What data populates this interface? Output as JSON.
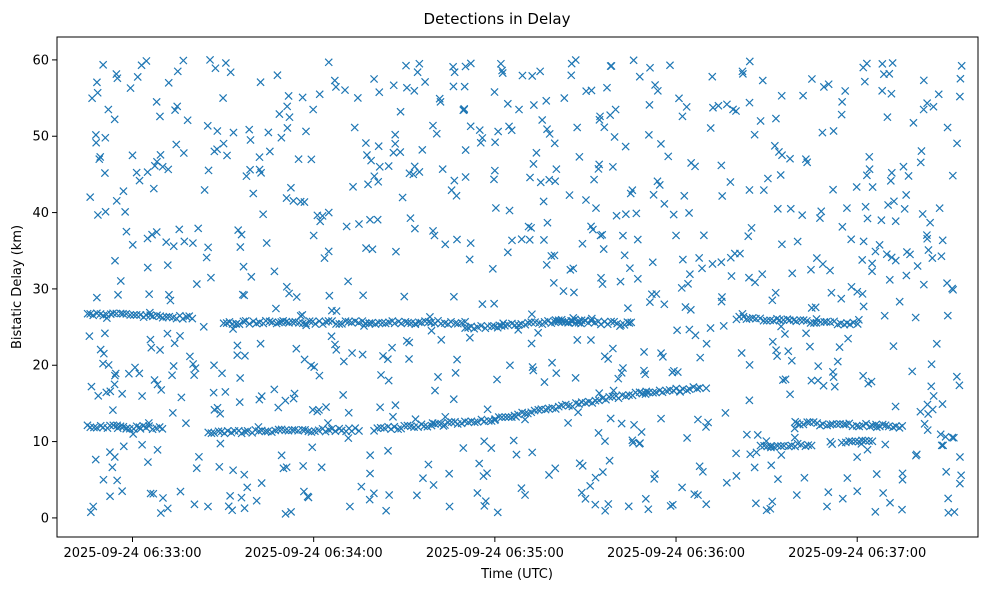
{
  "chart_data": {
    "type": "scatter",
    "title": "Detections in Delay",
    "xlabel": "Time (UTC)",
    "ylabel": "Bistatic Delay (km)",
    "marker": "x",
    "color": "#1f77b4",
    "grid": false,
    "legend": "none",
    "x_range": [
      "2025-09-24 06:32:35",
      "2025-09-24 06:37:40"
    ],
    "ylim": [
      -2.5,
      63
    ],
    "x_ticks": [
      "2025-09-24 06:33:00",
      "2025-09-24 06:34:00",
      "2025-09-24 06:35:00",
      "2025-09-24 06:36:00",
      "2025-09-24 06:37:00"
    ],
    "y_ticks": [
      0,
      10,
      20,
      30,
      40,
      50,
      60
    ],
    "tracks": [
      {
        "t_start": "2025-09-24 06:32:45",
        "t_end": "2025-09-24 06:33:20",
        "delay_start": 26.8,
        "delay_end": 26.2
      },
      {
        "t_start": "2025-09-24 06:33:30",
        "t_end": "2025-09-24 06:34:50",
        "delay_start": 25.6,
        "delay_end": 25.6
      },
      {
        "t_start": "2025-09-24 06:34:50",
        "t_end": "2025-09-24 06:35:30",
        "delay_start": 24.8,
        "delay_end": 26.0
      },
      {
        "t_start": "2025-09-24 06:35:20",
        "t_end": "2025-09-24 06:35:45",
        "delay_start": 25.8,
        "delay_end": 25.4
      },
      {
        "t_start": "2025-09-24 06:36:20",
        "t_end": "2025-09-24 06:37:00",
        "delay_start": 26.2,
        "delay_end": 25.4
      },
      {
        "t_start": "2025-09-24 06:32:45",
        "t_end": "2025-09-24 06:33:10",
        "delay_start": 12.0,
        "delay_end": 11.8
      },
      {
        "t_start": "2025-09-24 06:33:25",
        "t_end": "2025-09-24 06:34:15",
        "delay_start": 11.2,
        "delay_end": 11.6
      },
      {
        "t_start": "2025-09-24 06:34:20",
        "t_end": "2025-09-24 06:35:00",
        "delay_start": 11.6,
        "delay_end": 12.8
      },
      {
        "t_start": "2025-09-24 06:35:00",
        "t_end": "2025-09-24 06:35:50",
        "delay_start": 13.0,
        "delay_end": 16.5
      },
      {
        "t_start": "2025-09-24 06:35:50",
        "t_end": "2025-09-24 06:36:08",
        "delay_start": 16.4,
        "delay_end": 17.0
      },
      {
        "t_start": "2025-09-24 06:36:40",
        "t_end": "2025-09-24 06:37:15",
        "delay_start": 12.4,
        "delay_end": 12.0
      },
      {
        "t_start": "2025-09-24 06:36:28",
        "t_end": "2025-09-24 06:36:45",
        "delay_start": 9.4,
        "delay_end": 9.6
      },
      {
        "t_start": "2025-09-24 06:36:55",
        "t_end": "2025-09-24 06:37:05",
        "delay_start": 10.0,
        "delay_end": 10.2
      }
    ],
    "points": [
      [
        "2025-09-24 06:32:47",
        1.5
      ],
      [
        "2025-09-24 06:32:49",
        47.0
      ],
      [
        "2025-09-24 06:32:51",
        49.8
      ],
      [
        "2025-09-24 06:32:52",
        53.5
      ],
      [
        "2025-09-24 06:32:55",
        57.6
      ],
      [
        "2025-09-24 06:32:57",
        42.8
      ],
      [
        "2025-09-24 06:32:58",
        37.5
      ],
      [
        "2025-09-24 06:33:00",
        47.5
      ],
      [
        "2025-09-24 06:33:03",
        59.3
      ],
      [
        "2025-09-24 06:33:05",
        45.3
      ],
      [
        "2025-09-24 06:33:06",
        3.2
      ],
      [
        "2025-09-24 06:33:08",
        54.5
      ],
      [
        "2025-09-24 06:33:10",
        46.0
      ],
      [
        "2025-09-24 06:33:12",
        57.0
      ],
      [
        "2025-09-24 06:33:15",
        58.5
      ],
      [
        "2025-09-24 06:33:17",
        47.8
      ],
      [
        "2025-09-24 06:33:20",
        36.0
      ],
      [
        "2025-09-24 06:33:22",
        8.0
      ],
      [
        "2025-09-24 06:33:25",
        1.5
      ],
      [
        "2025-09-24 06:33:27",
        20.0
      ],
      [
        "2025-09-24 06:33:28",
        48.3
      ],
      [
        "2025-09-24 06:33:30",
        55.0
      ],
      [
        "2025-09-24 06:33:33",
        1.0
      ],
      [
        "2025-09-24 06:33:35",
        37.7
      ],
      [
        "2025-09-24 06:33:38",
        4.0
      ],
      [
        "2025-09-24 06:33:40",
        42.5
      ],
      [
        "2025-09-24 06:33:42",
        15.5
      ],
      [
        "2025-09-24 06:33:45",
        50.5
      ],
      [
        "2025-09-24 06:33:47",
        32.3
      ],
      [
        "2025-09-24 06:33:48",
        58.0
      ],
      [
        "2025-09-24 06:33:50",
        6.5
      ],
      [
        "2025-09-24 06:33:52",
        52.5
      ],
      [
        "2025-09-24 06:33:55",
        47.0
      ],
      [
        "2025-09-24 06:33:58",
        2.8
      ],
      [
        "2025-09-24 06:34:00",
        37.0
      ],
      [
        "2025-09-24 06:34:02",
        55.5
      ],
      [
        "2025-09-24 06:34:05",
        40.0
      ],
      [
        "2025-09-24 06:34:07",
        57.3
      ],
      [
        "2025-09-24 06:34:10",
        20.5
      ],
      [
        "2025-09-24 06:34:12",
        1.5
      ],
      [
        "2025-09-24 06:34:15",
        38.5
      ],
      [
        "2025-09-24 06:34:18",
        43.7
      ],
      [
        "2025-09-24 06:34:20",
        57.5
      ],
      [
        "2025-09-24 06:34:22",
        14.5
      ],
      [
        "2025-09-24 06:34:25",
        3.0
      ],
      [
        "2025-09-24 06:34:27",
        50.2
      ],
      [
        "2025-09-24 06:34:30",
        29.0
      ],
      [
        "2025-09-24 06:34:33",
        45.0
      ],
      [
        "2025-09-24 06:34:35",
        59.5
      ],
      [
        "2025-09-24 06:34:38",
        7.0
      ],
      [
        "2025-09-24 06:34:40",
        37.0
      ],
      [
        "2025-09-24 06:34:42",
        54.5
      ],
      [
        "2025-09-24 06:34:45",
        1.5
      ],
      [
        "2025-09-24 06:34:47",
        19.0
      ],
      [
        "2025-09-24 06:34:50",
        56.5
      ],
      [
        "2025-09-24 06:34:52",
        36.0
      ],
      [
        "2025-09-24 06:34:55",
        50.8
      ],
      [
        "2025-09-24 06:34:57",
        2.2
      ],
      [
        "2025-09-24 06:35:00",
        45.5
      ],
      [
        "2025-09-24 06:35:02",
        59.5
      ],
      [
        "2025-09-24 06:35:05",
        20.0
      ],
      [
        "2025-09-24 06:35:08",
        53.5
      ],
      [
        "2025-09-24 06:35:10",
        3.0
      ],
      [
        "2025-09-24 06:35:12",
        38.0
      ],
      [
        "2025-09-24 06:35:15",
        58.5
      ],
      [
        "2025-09-24 06:35:18",
        44.3
      ],
      [
        "2025-09-24 06:35:20",
        6.5
      ],
      [
        "2025-09-24 06:35:23",
        55.0
      ],
      [
        "2025-09-24 06:35:25",
        32.5
      ],
      [
        "2025-09-24 06:35:28",
        47.3
      ],
      [
        "2025-09-24 06:35:30",
        2.5
      ],
      [
        "2025-09-24 06:35:32",
        56.0
      ],
      [
        "2025-09-24 06:35:35",
        37.0
      ],
      [
        "2025-09-24 06:35:38",
        7.5
      ],
      [
        "2025-09-24 06:35:40",
        53.5
      ],
      [
        "2025-09-24 06:35:42",
        19.0
      ],
      [
        "2025-09-24 06:35:45",
        42.5
      ],
      [
        "2025-09-24 06:35:48",
        57.8
      ],
      [
        "2025-09-24 06:35:50",
        2.5
      ],
      [
        "2025-09-24 06:35:52",
        29.3
      ],
      [
        "2025-09-24 06:35:55",
        49.0
      ],
      [
        "2025-09-24 06:35:58",
        59.3
      ],
      [
        "2025-09-24 06:36:00",
        37.0
      ],
      [
        "2025-09-24 06:36:02",
        4.0
      ],
      [
        "2025-09-24 06:36:05",
        46.5
      ],
      [
        "2025-09-24 06:36:08",
        21.0
      ],
      [
        "2025-09-24 06:36:10",
        1.8
      ],
      [
        "2025-09-24 06:36:12",
        57.8
      ],
      [
        "2025-09-24 06:36:15",
        33.5
      ],
      [
        "2025-09-24 06:36:18",
        44.0
      ],
      [
        "2025-09-24 06:36:20",
        5.5
      ],
      [
        "2025-09-24 06:36:22",
        58.5
      ],
      [
        "2025-09-24 06:36:25",
        38.0
      ],
      [
        "2025-09-24 06:36:28",
        52.0
      ],
      [
        "2025-09-24 06:36:30",
        1.0
      ],
      [
        "2025-09-24 06:36:33",
        29.5
      ],
      [
        "2025-09-24 06:36:35",
        55.3
      ],
      [
        "2025-09-24 06:36:38",
        40.5
      ],
      [
        "2025-09-24 06:36:40",
        3.0
      ],
      [
        "2025-09-24 06:36:43",
        47.0
      ],
      [
        "2025-09-24 06:36:45",
        57.5
      ],
      [
        "2025-09-24 06:36:47",
        18.0
      ],
      [
        "2025-09-24 06:36:50",
        1.5
      ],
      [
        "2025-09-24 06:36:52",
        43.0
      ],
      [
        "2025-09-24 06:36:55",
        54.5
      ],
      [
        "2025-09-24 06:36:58",
        36.5
      ],
      [
        "2025-09-24 06:37:00",
        3.5
      ],
      [
        "2025-09-24 06:37:02",
        59.0
      ],
      [
        "2025-09-24 06:37:04",
        47.3
      ],
      [
        "2025-09-24 06:37:06",
        0.8
      ],
      [
        "2025-09-24 06:37:08",
        39.0
      ],
      [
        "2025-09-24 06:37:10",
        52.5
      ],
      [
        "2025-09-24 06:37:12",
        22.5
      ],
      [
        "2025-09-24 06:37:15",
        5.0
      ],
      [
        "2025-09-24 06:37:17",
        44.8
      ],
      [
        "2025-09-24 06:37:20",
        33.0
      ],
      [
        "2025-09-24 06:37:22",
        53.5
      ],
      [
        "2025-09-24 06:37:25",
        14.2
      ],
      [
        "2025-09-24 06:37:27",
        55.5
      ],
      [
        "2025-09-24 06:37:30",
        26.5
      ],
      [
        "2025-09-24 06:37:32",
        10.5
      ],
      [
        "2025-09-24 06:37:33",
        18.5
      ],
      [
        "2025-09-24 06:37:34",
        4.5
      ],
      [
        "2025-09-24 06:37:34",
        55.2
      ]
    ],
    "scatter_seed": 20250924,
    "scatter_count": 760
  }
}
